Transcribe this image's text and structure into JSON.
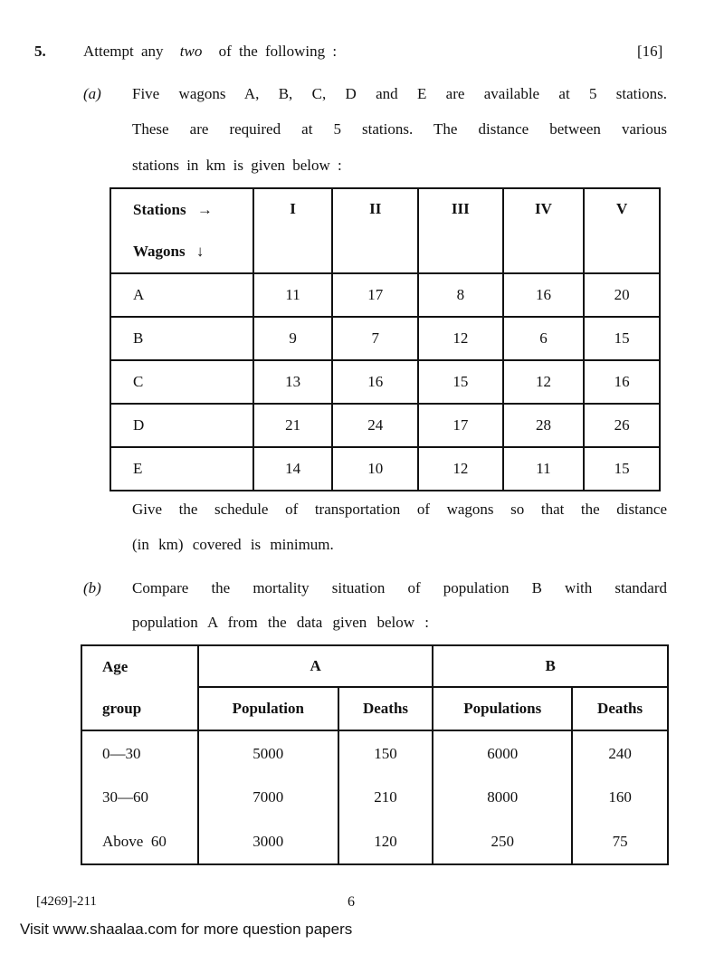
{
  "question": {
    "number": "5.",
    "instruction_pre": "Attempt any",
    "instruction_em": "two",
    "instruction_post": "of the following :",
    "marks": "[16]"
  },
  "part_a": {
    "label": "(a)",
    "lines": [
      "Five wagons A, B, C, D and E are available at 5 stations.",
      "These are required at 5 stations. The distance between various",
      "stations in km is given below :"
    ],
    "table": {
      "corner_top": "Stations →",
      "corner_bottom": "Wagons ↓",
      "columns": [
        "I",
        "II",
        "III",
        "IV",
        "V"
      ],
      "rows": [
        {
          "label": "A",
          "values": [
            "11",
            "17",
            "8",
            "16",
            "20"
          ]
        },
        {
          "label": "B",
          "values": [
            "9",
            "7",
            "12",
            "6",
            "15"
          ]
        },
        {
          "label": "C",
          "values": [
            "13",
            "16",
            "15",
            "12",
            "16"
          ]
        },
        {
          "label": "D",
          "values": [
            "21",
            "24",
            "17",
            "28",
            "26"
          ]
        },
        {
          "label": "E",
          "values": [
            "14",
            "10",
            "12",
            "11",
            "15"
          ]
        }
      ]
    },
    "after_lines": [
      "Give the schedule of transportation of wagons so that the distance",
      "(in km) covered is minimum."
    ]
  },
  "part_b": {
    "label": "(b)",
    "lines": [
      "Compare the mortality situation of population B with standard",
      "population A from the data given below :"
    ],
    "table": {
      "age_header_top": "Age",
      "age_header_bottom": "group",
      "group_a": "A",
      "group_b": "B",
      "subheaders": [
        "Population",
        "Deaths",
        "Populations",
        "Deaths"
      ],
      "rows": [
        {
          "age": "0—30",
          "values": [
            "5000",
            "150",
            "6000",
            "240"
          ]
        },
        {
          "age": "30—60",
          "values": [
            "7000",
            "210",
            "8000",
            "160"
          ]
        },
        {
          "age": "Above  60",
          "values": [
            "3000",
            "120",
            "250",
            "75"
          ]
        }
      ]
    }
  },
  "footer": {
    "code": "[4269]-211",
    "page": "6",
    "visit_text": "Visit www.shaalaa.com for more question papers"
  },
  "watermark": {
    "text": "shaalaa.com",
    "color": "#c8c8c8"
  }
}
